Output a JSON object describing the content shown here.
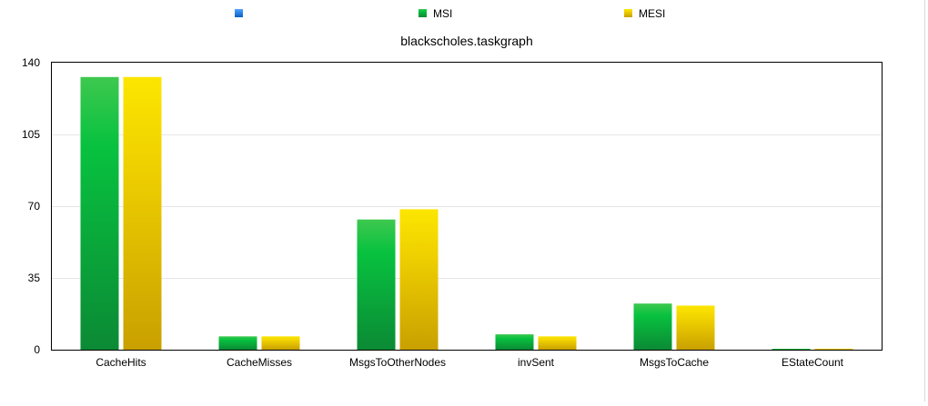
{
  "chart_data": {
    "type": "bar",
    "title": "blackscholes.taskgraph",
    "xlabel": "",
    "ylabel": "",
    "categories": [
      "CacheHits",
      "CacheMisses",
      "MsgsToOtherNodes",
      "invSent",
      "MsgsToCache",
      "EStateCount"
    ],
    "series": [
      {
        "name": "",
        "values": [
          null,
          null,
          null,
          null,
          null,
          null
        ],
        "color": "#1a73d9"
      },
      {
        "name": "MSI",
        "values": [
          133,
          6.5,
          63.5,
          7.5,
          22.5,
          0
        ],
        "color": "#0aa83a"
      },
      {
        "name": "MESI",
        "values": [
          133,
          6.5,
          68.5,
          6.5,
          21.5,
          0.5
        ],
        "color": "#f2d600"
      }
    ],
    "ylim": [
      0,
      140
    ],
    "yticks": [
      "0",
      "35",
      "70",
      "105",
      "140"
    ],
    "grid": true,
    "legend_position": "top"
  }
}
